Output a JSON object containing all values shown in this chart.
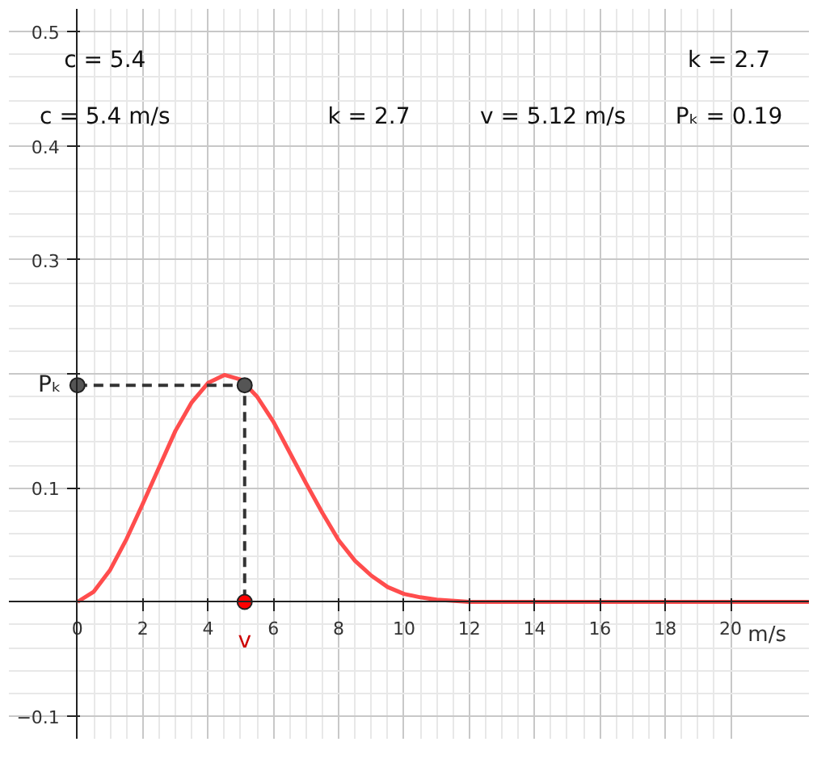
{
  "chart_data": {
    "type": "line",
    "xlabel": "m/s",
    "xlim": [
      -2.1,
      22.4
    ],
    "ylim": [
      -0.12,
      0.52
    ],
    "xticks": [
      0,
      2,
      4,
      6,
      8,
      10,
      12,
      14,
      16,
      18,
      20
    ],
    "yticks": [
      -0.1,
      0.1,
      {
        "value": 0.2,
        "label": null
      },
      0.3,
      0.4,
      0.5
    ],
    "grid": true,
    "series": [
      {
        "color": "#ff4d4d",
        "x": [
          0,
          0.5,
          1,
          1.5,
          2,
          2.5,
          3,
          3.5,
          4,
          4.5,
          5,
          5.5,
          6,
          6.5,
          7,
          7.5,
          8,
          8.5,
          9,
          9.5,
          10,
          10.5,
          11,
          12,
          13,
          14,
          16,
          18,
          20,
          22.4
        ],
        "values": [
          0,
          0.009,
          0.028,
          0.055,
          0.086,
          0.118,
          0.15,
          0.175,
          0.192,
          0.199,
          0.195,
          0.18,
          0.158,
          0.131,
          0.104,
          0.078,
          0.054,
          0.036,
          0.023,
          0.013,
          0.007,
          0.004,
          0.002,
          0,
          0,
          0,
          0,
          0,
          0,
          0
        ]
      },
      {
        "color": "#333333",
        "line_style": "dashed",
        "marker": "none",
        "x": [
          0,
          5.12,
          5.12
        ],
        "values": [
          0.19,
          0.19,
          0
        ]
      },
      {
        "type": "scatter",
        "color": "#555555",
        "marker": "circle",
        "x": [
          0,
          5.12
        ],
        "values": [
          0.19,
          0.19
        ]
      },
      {
        "type": "scatter",
        "color": "#ff0000",
        "marker": "circle",
        "x": [
          5.12
        ],
        "values": [
          0
        ]
      }
    ],
    "annotations": [
      "c = 5.4",
      "k = 2.7",
      "c = 5.4 m/s",
      "k = 2.7",
      "v = 5.12 m/s",
      "Pₖ = 0.19",
      {
        "text": "Pₖ",
        "x": 0,
        "y": 0.19
      },
      {
        "text": "v",
        "x": 5.12,
        "y": 0
      }
    ]
  }
}
